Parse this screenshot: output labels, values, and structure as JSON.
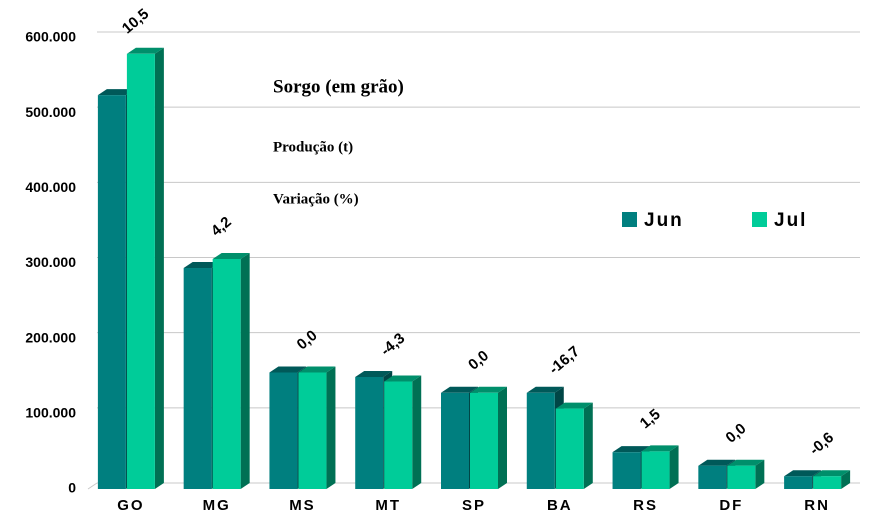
{
  "chart_data": {
    "type": "bar3d",
    "title": "Sorgo (em grão)",
    "subtitle": "Produção (t)",
    "annotation": "Variação (%)",
    "categories": [
      "GO",
      "MG",
      "MS",
      "MT",
      "SP",
      "BA",
      "RS",
      "DF",
      "RN"
    ],
    "series": [
      {
        "name": "Jun",
        "color": "#007f7f",
        "values": [
          524000,
          294000,
          155000,
          149000,
          128000,
          128000,
          49000,
          31000,
          17000
        ]
      },
      {
        "name": "Jul",
        "color": "#00cc99",
        "values": [
          579000,
          306000,
          155000,
          143000,
          128000,
          107000,
          50000,
          31000,
          17000
        ]
      }
    ],
    "variation": {
      "values": [
        10.5,
        4.2,
        0.0,
        -4.3,
        0.0,
        -16.7,
        1.5,
        0.0,
        -0.6
      ],
      "value_labels": [
        "10,5",
        "4,2",
        "0,0",
        "-4,3",
        "0,0",
        "-16,7",
        "1,5",
        "0,0",
        "-0,6"
      ]
    },
    "ylim": [
      0,
      600000
    ],
    "yticks": [
      0,
      {
        "value": 100000,
        "label": "100.000"
      },
      {
        "value": 200000,
        "label": "200.000"
      },
      {
        "value": 300000,
        "label": "300.000"
      },
      {
        "value": 400000,
        "label": "400.000"
      },
      {
        "value": 500000,
        "label": "500.000"
      },
      {
        "value": 600000,
        "label": "600.000"
      }
    ],
    "grid": true,
    "legend": "right"
  }
}
